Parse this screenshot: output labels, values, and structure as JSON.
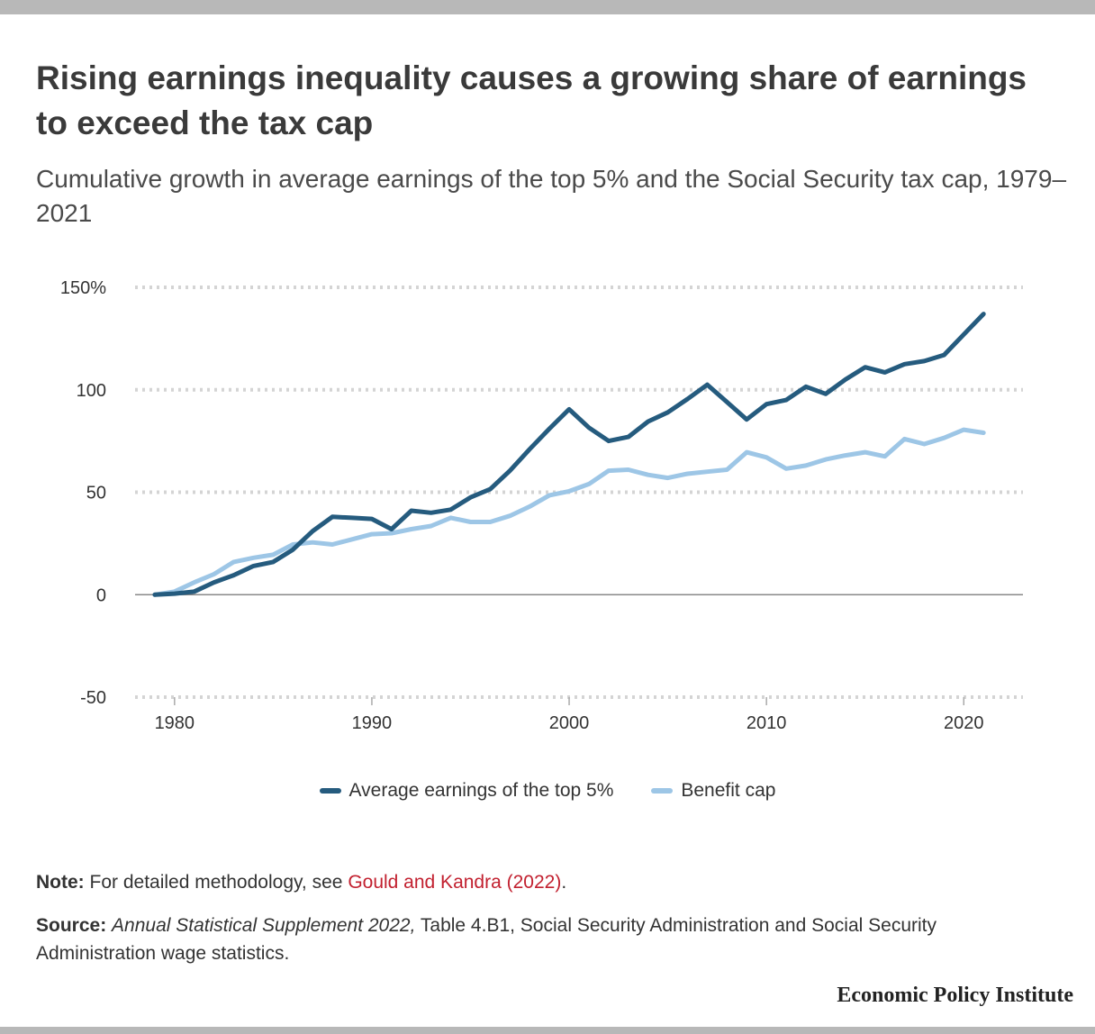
{
  "header": {
    "title": "Rising earnings inequality causes a growing share of earnings to exceed the tax cap",
    "subtitle": "Cumulative growth in average earnings of the top 5% and the Social Security tax cap, 1979–2021"
  },
  "chart_data": {
    "type": "line",
    "x": [
      1979,
      1980,
      1981,
      1982,
      1983,
      1984,
      1985,
      1986,
      1987,
      1988,
      1989,
      1990,
      1991,
      1992,
      1993,
      1994,
      1995,
      1996,
      1997,
      1998,
      1999,
      2000,
      2001,
      2002,
      2003,
      2004,
      2005,
      2006,
      2007,
      2008,
      2009,
      2010,
      2011,
      2012,
      2013,
      2014,
      2015,
      2016,
      2017,
      2018,
      2019,
      2020,
      2021
    ],
    "series": [
      {
        "name": "Average earnings of the top 5%",
        "color": "#255b7e",
        "values": [
          0,
          0.5,
          1.5,
          6,
          9.5,
          14,
          16,
          22,
          31,
          38,
          37.5,
          37,
          32,
          41,
          40,
          41.5,
          47.5,
          51.5,
          60.5,
          71,
          81,
          90.5,
          81.5,
          75,
          77,
          84.5,
          89,
          95.5,
          102.5,
          94,
          85.5,
          93,
          95,
          101.5,
          98,
          105,
          111,
          108.5,
          112.5,
          114,
          117,
          127,
          137
        ]
      },
      {
        "name": "Benefit cap",
        "color": "#9dc6e6",
        "values": [
          0,
          1.5,
          6,
          10,
          16,
          18,
          19.5,
          24.5,
          25.5,
          24.5,
          27,
          29.5,
          30,
          32,
          33.5,
          37.5,
          35.5,
          35.5,
          38.5,
          43,
          48.5,
          50.5,
          54,
          60.5,
          61,
          58.5,
          57,
          59,
          60,
          61,
          69.5,
          67,
          61.5,
          63,
          66,
          68,
          69.5,
          67.5,
          76,
          73.5,
          76.5,
          80.5,
          79
        ]
      }
    ],
    "y_ticks": [
      "150%",
      "100",
      "50",
      "0",
      "-50"
    ],
    "y_tick_values": [
      150,
      100,
      50,
      0,
      -50
    ],
    "x_ticks": [
      "1980",
      "1990",
      "2000",
      "2010",
      "2020"
    ],
    "x_tick_values": [
      1980,
      1990,
      2000,
      2010,
      2020
    ],
    "xlim": [
      1978,
      2023
    ],
    "ylim": [
      -50,
      150
    ],
    "grid": true,
    "legend_placement": "bottom-center"
  },
  "footer": {
    "note_lead": "Note:",
    "note_text": "For detailed methodology, see",
    "note_link": "Gould and Kandra (2022)",
    "note_end": ".",
    "source_lead": "Source:",
    "source_pub": "Annual Statistical Supplement 2022,",
    "source_text": "Table 4.B1, Social Security Administration and Social Security Administration wage statistics.",
    "brand": "Economic Policy Institute"
  }
}
